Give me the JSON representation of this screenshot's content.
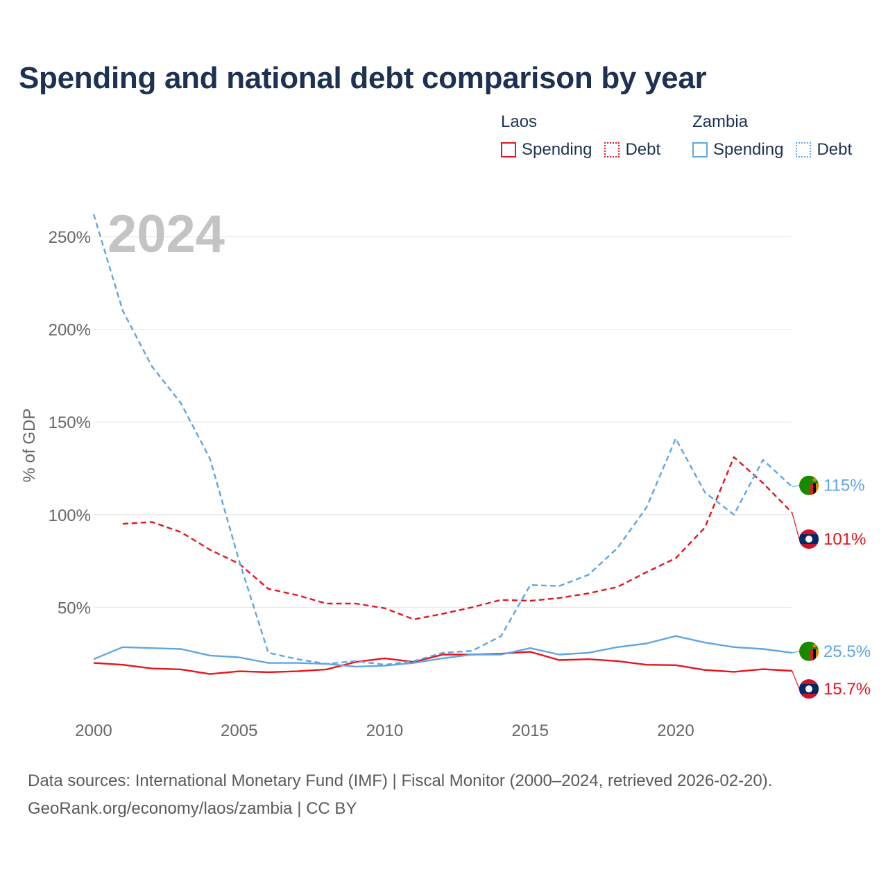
{
  "title": "Spending and national debt comparison by year",
  "legend": {
    "groups": [
      {
        "name": "Laos",
        "color": "#e8141c",
        "items": [
          {
            "label": "Spending",
            "style": "solid"
          },
          {
            "label": "Debt",
            "style": "dotted"
          }
        ]
      },
      {
        "name": "Zambia",
        "color": "#5fa5e3",
        "items": [
          {
            "label": "Spending",
            "style": "solid"
          },
          {
            "label": "Debt",
            "style": "dotted"
          }
        ]
      }
    ]
  },
  "year_label": "2024",
  "chart_data": {
    "type": "line",
    "ylabel": "% of GDP",
    "xlabel": "",
    "xlim": [
      2000,
      2025
    ],
    "ylim": [
      0,
      260
    ],
    "yticks": [
      50,
      100,
      150,
      200,
      250
    ],
    "ytick_labels": [
      "50%",
      "100%",
      "150%",
      "200%",
      "250%"
    ],
    "xticks": [
      2000,
      2005,
      2010,
      2015,
      2020
    ],
    "xtick_labels": [
      "2000",
      "2005",
      "2010",
      "2015",
      "2020"
    ],
    "grid": true,
    "series": [
      {
        "name": "Laos Spending",
        "country": "Laos",
        "kind": "Spending",
        "color": "#e8141c",
        "dashed": false,
        "x": [
          2000,
          2001,
          2002,
          2003,
          2004,
          2005,
          2006,
          2007,
          2008,
          2009,
          2010,
          2011,
          2012,
          2013,
          2014,
          2015,
          2016,
          2017,
          2018,
          2019,
          2020,
          2021,
          2022,
          2023,
          2024
        ],
        "values": [
          20,
          19,
          17,
          16.5,
          14,
          15.5,
          15,
          15.5,
          16.5,
          20.5,
          22.5,
          20.5,
          24.5,
          24.5,
          25,
          26,
          21.5,
          22,
          21,
          19,
          18.8,
          16.2,
          15.2,
          16.6,
          15.7
        ],
        "end_label": "15.7%"
      },
      {
        "name": "Laos Debt",
        "country": "Laos",
        "kind": "Debt",
        "color": "#e8141c",
        "dashed": true,
        "x": [
          2001,
          2002,
          2003,
          2004,
          2005,
          2006,
          2007,
          2008,
          2009,
          2010,
          2011,
          2012,
          2013,
          2014,
          2015,
          2016,
          2017,
          2018,
          2019,
          2020,
          2021,
          2022,
          2023,
          2024
        ],
        "values": [
          95,
          96,
          90.5,
          81,
          73.5,
          60,
          56.5,
          52,
          52,
          49.5,
          43.5,
          46.5,
          50,
          54,
          53.5,
          55,
          57.5,
          61,
          69,
          76.5,
          93,
          131,
          117,
          101
        ],
        "end_label": "101%"
      },
      {
        "name": "Zambia Spending",
        "country": "Zambia",
        "kind": "Spending",
        "color": "#5fa5e3",
        "dashed": false,
        "x": [
          2000,
          2001,
          2002,
          2003,
          2004,
          2005,
          2006,
          2007,
          2008,
          2009,
          2010,
          2011,
          2012,
          2013,
          2014,
          2015,
          2016,
          2017,
          2018,
          2019,
          2020,
          2021,
          2022,
          2023,
          2024
        ],
        "values": [
          22,
          28.5,
          28,
          27.5,
          24,
          23,
          20,
          20,
          19.5,
          18,
          18.5,
          20,
          22.5,
          24.5,
          24.5,
          28,
          24.5,
          25.5,
          28.5,
          30.5,
          34.5,
          31,
          28.5,
          27.5,
          25.5
        ],
        "end_label": "25.5%"
      },
      {
        "name": "Zambia Debt",
        "country": "Zambia",
        "kind": "Debt",
        "color": "#5fa5e3",
        "dashed": true,
        "x": [
          2000,
          2001,
          2002,
          2003,
          2004,
          2005,
          2006,
          2007,
          2008,
          2009,
          2010,
          2011,
          2012,
          2013,
          2014,
          2015,
          2016,
          2017,
          2018,
          2019,
          2020,
          2021,
          2022,
          2023,
          2024
        ],
        "values": [
          262,
          210,
          180,
          160,
          130,
          75,
          25.5,
          22,
          19.5,
          21,
          19,
          21,
          25.5,
          26.5,
          34.5,
          62,
          61.5,
          67.5,
          82,
          104,
          141,
          112,
          100,
          129.5,
          115
        ],
        "end_label": "115%"
      }
    ]
  },
  "flags": {
    "laos": {
      "name": "laos-flag-icon",
      "colors": [
        "#ce1126",
        "#002868",
        "#ffffff"
      ]
    },
    "zambia": {
      "name": "zambia-flag-icon",
      "colors": [
        "#198a00",
        "#de2010",
        "#000000",
        "#ef7d00"
      ]
    }
  },
  "footer": {
    "line1": "Data sources: International Monetary Fund (IMF) | Fiscal Monitor (2000–2024, retrieved 2026-02-20).",
    "line2": "GeoRank.org/economy/laos/zambia | CC BY"
  }
}
